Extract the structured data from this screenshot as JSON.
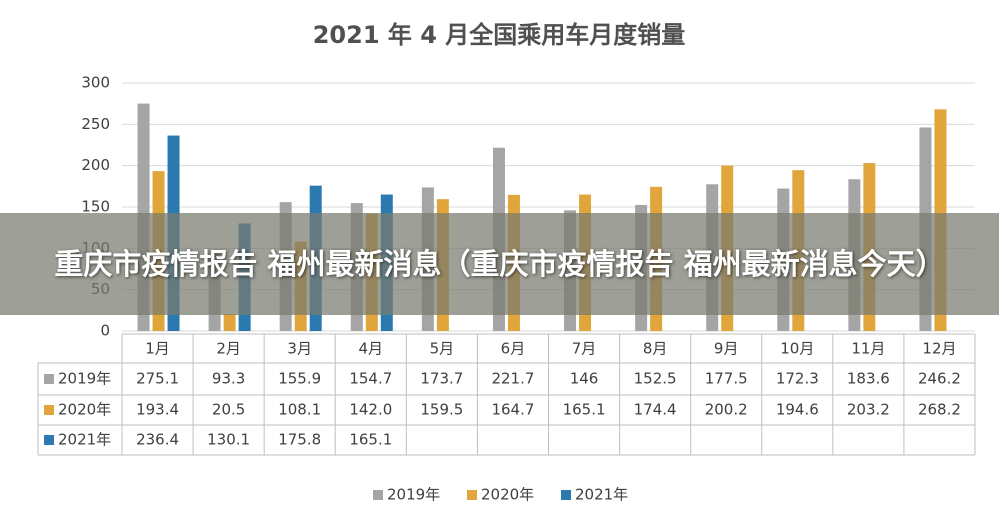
{
  "chart_data": {
    "type": "bar",
    "title": "2021 年 4 月全国乘用车月度销量",
    "categories": [
      "1月",
      "2月",
      "3月",
      "4月",
      "5月",
      "6月",
      "7月",
      "8月",
      "9月",
      "10月",
      "11月",
      "12月"
    ],
    "series": [
      {
        "name": "2019年",
        "color": "#a5a5a5",
        "values": [
          275.1,
          93.3,
          155.9,
          154.7,
          173.7,
          221.7,
          146,
          152.5,
          177.5,
          172.3,
          183.6,
          246.2
        ]
      },
      {
        "name": "2020年",
        "color": "#e0a63c",
        "values": [
          193.4,
          20.5,
          108.1,
          142.0,
          159.5,
          164.7,
          165.1,
          174.4,
          200.2,
          194.6,
          203.2,
          268.2
        ],
        "value_labels": [
          "193.4",
          "20.5",
          "108.1",
          "142.0",
          "159.5",
          "164.7",
          "165.1",
          "174.4",
          "200.2",
          "194.6",
          "203.2",
          "268.2"
        ]
      },
      {
        "name": "2021年",
        "color": "#2a7ab0",
        "values": [
          236.4,
          130.1,
          175.8,
          165.1,
          null,
          null,
          null,
          null,
          null,
          null,
          null,
          null
        ]
      }
    ],
    "ylim": [
      0,
      300
    ],
    "yticks": [
      0,
      50,
      100,
      150,
      200,
      250,
      300
    ],
    "grid": true,
    "overlay_text": "重庆市疫情报告 福州最新消息（重庆市疫情报告 福州最新消息今天）"
  }
}
